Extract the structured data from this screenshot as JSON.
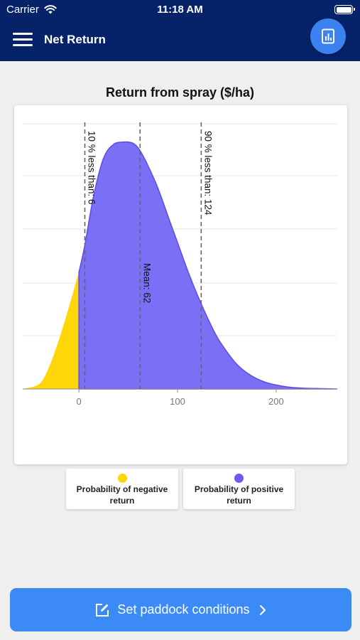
{
  "status": {
    "carrier": "Carrier",
    "time": "11:18 AM"
  },
  "nav": {
    "title": "Net Return",
    "menu_icon": "hamburger-icon",
    "report_icon": "bar-chart-report-icon"
  },
  "chart_title": "Return from spray ($/ha)",
  "chart_data": {
    "type": "area",
    "title": "Return from spray ($/ha)",
    "xlabel": "",
    "ylabel": "",
    "xlim": [
      -57,
      262
    ],
    "ylim": [
      0,
      1
    ],
    "x_ticks": [
      0,
      100,
      200
    ],
    "grid": true,
    "series": [
      {
        "name": "Probability of negative return",
        "color": "#ffd60a",
        "x": [
          -57,
          -40,
          -30,
          -20,
          -10,
          0
        ],
        "y": [
          0.0,
          0.02,
          0.09,
          0.2,
          0.33,
          0.47
        ]
      },
      {
        "name": "Probability of positive return",
        "color": "#7b6ff5",
        "x": [
          0,
          6,
          15,
          25,
          35,
          45,
          55,
          62,
          70,
          80,
          90,
          100,
          110,
          120,
          130,
          140,
          150,
          160,
          170,
          180,
          190,
          200,
          210,
          220,
          230,
          240,
          250,
          262
        ],
        "y": [
          0.47,
          0.58,
          0.78,
          0.93,
          0.985,
          0.995,
          0.99,
          0.96,
          0.9,
          0.81,
          0.7,
          0.59,
          0.48,
          0.38,
          0.29,
          0.21,
          0.15,
          0.1,
          0.066,
          0.042,
          0.026,
          0.016,
          0.009,
          0.005,
          0.003,
          0.002,
          0.001,
          0.0
        ]
      }
    ],
    "annotations": [
      {
        "x": 6,
        "label": "10 % less than: 6"
      },
      {
        "x": 62,
        "label": "Mean: 62"
      },
      {
        "x": 124,
        "label": "90 % less than: 124"
      }
    ]
  },
  "legend": {
    "negative": {
      "label": "Probability of negative return",
      "color": "#ffd60a"
    },
    "positive": {
      "label": "Probability of positive return",
      "color": "#6a5cf0"
    }
  },
  "cta": {
    "label": "Set paddock conditions",
    "icon": "edit-icon",
    "chevron": "chevron-right-icon"
  }
}
